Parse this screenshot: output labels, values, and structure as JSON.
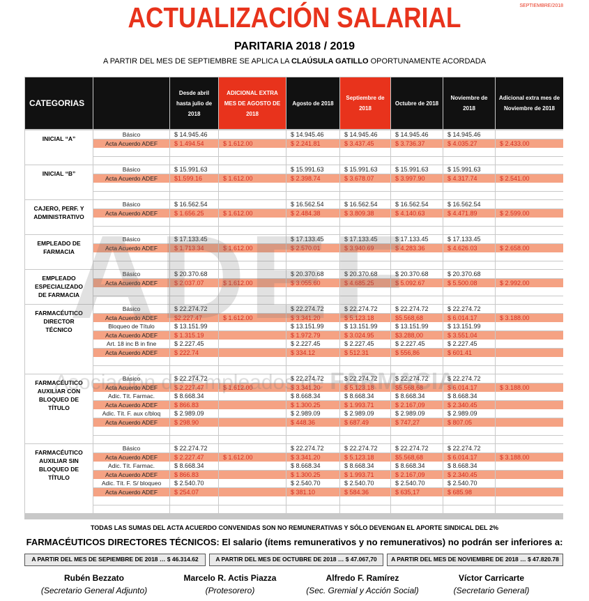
{
  "header": {
    "date": "SEPTIEMBRE/2018",
    "title": "ACTUALIZACIÓN SALARIAL",
    "subtitle": "PARITARIA 2018 / 2019",
    "intro_a": "A PARTIR DEL MES DE SEPTIEMBRE  SE APLICA LA",
    "intro_b": "CLAÚSULA GATILLO",
    "intro_c": "OPORTUNAMENTE ACORDADA"
  },
  "watermark": {
    "logo": "ADEF",
    "text_a": "Asociación de Empleados de",
    "text_b": "FARMACIA"
  },
  "table": {
    "headers": [
      "CATEGORIAS",
      null,
      "Desde abril hasta julio de 2018",
      "ADICIONAL EXTRA MES DE AGOSTO DE 2018",
      "Agosto de 2018",
      "Septiembre de 2018",
      "Octubre de 2018",
      "Noviembre de 2018",
      "Adicional extra mes de Noviembre de 2018"
    ],
    "groups": [
      {
        "category": "INICIAL “A”",
        "rows": [
          {
            "label": "Básico",
            "cells": [
              "$ 14.945.46",
              null,
              "$ 14.945.46",
              "$ 14.945.46",
              "$ 14.945.46",
              "$ 14.945.46",
              null
            ]
          },
          {
            "label": "Acta Acuerdo ADEF",
            "cells": [
              "$ 1.494.54",
              "$ 1.612.00",
              "$ 2.241.81",
              "$ 3.437.45",
              "$ 3.736.37",
              "$ 4.035.27",
              "$ 2.433.00"
            ]
          }
        ]
      },
      {
        "category": "INICIAL  “B”",
        "rows": [
          {
            "label": "Básico",
            "cells": [
              "$ 15.991.63",
              null,
              "$ 15.991.63",
              "$ 15.991.63",
              "$ 15.991.63",
              "$ 15.991.63",
              null
            ]
          },
          {
            "label": "Acta Acuerdo ADEF",
            "cells": [
              "$1.599.16",
              "$ 1.612.00",
              "$ 2.398.74",
              "$ 3.678.07",
              "$ 3.997.90",
              "$ 4.317.74",
              "$ 2.541.00"
            ]
          }
        ]
      },
      {
        "category": "CAJERO, PERF. Y ADMINISTRATIVO",
        "rows": [
          {
            "label": "Básico",
            "cells": [
              "$ 16.562.54",
              null,
              "$ 16.562.54",
              "$ 16.562.54",
              "$ 16.562.54",
              "$ 16.562.54",
              null
            ]
          },
          {
            "label": "Acta Acuerdo ADEF",
            "cells": [
              "$ 1.656.25",
              "$ 1.612.00",
              "$ 2.484.38",
              "$ 3.809.38",
              "$ 4.140.63",
              "$ 4.471.89",
              "$ 2.599.00"
            ]
          }
        ]
      },
      {
        "category": "EMPLEADO DE FARMACIA",
        "rows": [
          {
            "label": "Básico",
            "cells": [
              "$ 17.133.45",
              null,
              "$ 17.133.45",
              "$ 17.133.45",
              "$ 17.133.45",
              "$ 17.133.45",
              null
            ]
          },
          {
            "label": "Acta Acuerdo ADEF",
            "cells": [
              "$ 1.713.34",
              "$ 1.612.00",
              "$ 2.570.01",
              "$ 3.940.69",
              "$ 4.283.36",
              "$ 4.626.03",
              "$ 2.658.00"
            ]
          }
        ]
      },
      {
        "category": "EMPLEADO ESPECIALIZADO DE FARMACIA",
        "rows": [
          {
            "label": "Básico",
            "cells": [
              "$ 20.370.68",
              null,
              "$ 20.370.68",
              "$ 20.370.68",
              "$ 20.370.68",
              "$ 20.370.68",
              null
            ]
          },
          {
            "label": "Acta Acuerdo  ADEF",
            "cells": [
              "$ 2.037.07",
              "$ 1.612.00",
              "$ 3.055.60",
              "$ 4.685.25",
              "$ 5.092.67",
              "$ 5.500.08",
              "$ 2.992.00"
            ]
          }
        ]
      },
      {
        "category": "FARMACÉUTICO DIRECTOR TÉCNICO",
        "rows": [
          {
            "label": "Básico",
            "cells": [
              "$ 22.274.72",
              null,
              "$ 22.274.72",
              "$ 22.274.72",
              "$ 22.274.72",
              "$ 22.274.72",
              null
            ]
          },
          {
            "label": "Acta Acuerdo  ADEF",
            "cells": [
              "$2.227.47",
              "$ 1.612.00",
              "$ 3.341.20",
              "$ 5.123.18",
              "$5.568,68",
              "$ 6.014.17",
              "$ 3.188.00"
            ]
          },
          {
            "label": "Bloqueo de Título",
            "cells": [
              "$ 13.151.99",
              null,
              "$ 13.151.99",
              "$ 13.151.99",
              "$ 13.151.99",
              "$ 13.151.99",
              null
            ]
          },
          {
            "label": "Acta Acuerdo ADEF",
            "cells": [
              "$ 1.315.19",
              null,
              "$ 1.972.79",
              "$ 3.024.95",
              "$3.288,00",
              "$ 3.551.04",
              null
            ]
          },
          {
            "label": "Art. 18 inc B in fine",
            "cells": [
              "$ 2.227.45",
              null,
              "$ 2.227.45",
              "$ 2.227.45",
              "$ 2.227.45",
              "$ 2.227.45",
              null
            ]
          },
          {
            "label": "Acta Acuerdo ADEF",
            "cells": [
              "$ 222.74",
              null,
              "$ 334.12",
              "$ 512.31",
              "$ 556,86",
              "$ 601.41",
              null
            ]
          }
        ]
      },
      {
        "category": "FARMACÉUTICO AUXILIAR CON BLOQUEO DE TÍTULO",
        "rows": [
          {
            "label": "Básico",
            "cells": [
              "$ 22.274.72",
              null,
              "$ 22.274.72",
              "$ 22.274.72",
              "$ 22.274.72",
              "$ 22.274.72",
              null
            ]
          },
          {
            "label": "Acta Acuerdo ADEF",
            "cells": [
              "$ 2.227.47",
              "$ 1.612.00",
              "$ 3.341.20",
              "$ 5.123.18",
              "$5.568,68",
              "$ 6.014.17",
              "$ 3.188.00"
            ]
          },
          {
            "label": "Adic. Tít. Farmac.",
            "cells": [
              "$ 8.668.34",
              null,
              "$ 8.668.34",
              "$ 8.668.34",
              "$ 8.668.34",
              "$ 8.668.34",
              null
            ]
          },
          {
            "label": "Acta Acuerdo ADEF",
            "cells": [
              "$ 866.83",
              null,
              "$ 1.300.25",
              "$ 1.993.71",
              "$ 2.167,09",
              "$ 2.340.45",
              null
            ]
          },
          {
            "label": "Adic. Tít. F. aux c/bloq",
            "cells": [
              "$ 2.989.09",
              null,
              "$ 2.989.09",
              "$ 2.989.09",
              "$ 2.989.09",
              "$ 2.989.09",
              null
            ]
          },
          {
            "label": "Acta Acuerdo ADEF",
            "cells": [
              "$ 298.90",
              null,
              "$ 448.36",
              "$ 687.49",
              "$ 747,27",
              "$ 807.05",
              null
            ]
          }
        ]
      },
      {
        "category": "FARMACÉUTICO AUXILIAR SIN BLOQUEO DE TÍTULO",
        "rows": [
          {
            "label": "Básico",
            "cells": [
              "$ 22.274.72",
              null,
              "$ 22.274.72",
              "$ 22.274.72",
              "$ 22.274.72",
              "$ 22.274.72",
              null
            ]
          },
          {
            "label": "Acta Acuerdo ADEF",
            "cells": [
              "$ 2.227.47",
              "$ 1.612.00",
              "$ 3.341.20",
              "$ 5.123.18",
              "$5.568,68",
              "$ 6.014.17",
              "$ 3.188.00"
            ]
          },
          {
            "label": "Adic. Tít. Farmac.",
            "cells": [
              "$ 8.668.34",
              null,
              "$ 8.668.34",
              "$ 8.668.34",
              "$ 8.668.34",
              "$ 8.668.34",
              null
            ]
          },
          {
            "label": "Acta Acuerdo ADEF",
            "cells": [
              "$ 866.83",
              null,
              "$ 1.300.25",
              "$ 1.993.71",
              "$ 2.167,09",
              "$ 2.340.45",
              null
            ]
          },
          {
            "label": "Adic. Tít. F. S/ bloqueo",
            "cells": [
              "$ 2.540.70",
              null,
              "$ 2.540.70",
              "$ 2.540.70",
              "$ 2.540.70",
              "$ 2.540.70",
              null
            ]
          },
          {
            "label": "Acta Acuerdo ADEF",
            "cells": [
              "$ 254.07",
              null,
              "$ 381.10",
              "$ 584.36",
              "$ 635,17",
              "$ 685.98",
              null
            ]
          }
        ]
      }
    ]
  },
  "footer": {
    "note": "TODAS LAS SUMAS  DEL ACTA ACUERDO CONVENIDAS SON NO REMUNERATIVAS Y SÓLO DEVENGAN EL APORTE SINDICAL DEL 2%",
    "minimum": "FARMACÉUTICOS DIRECTORES TÉCNICOS: El salario (ítems remunerativos y no remunerativos) no podrán ser inferiores a:",
    "boxes": [
      "A PARTIR DEL MES DE SEPIEMBRE DE 2018 … $ 46.314.62",
      "A PARTIR DEL MES DE OCTUBRE DE 2018 … $ 47.067,70",
      "A PARTIR DEL MES DE NOVIEMBRE  DE 2018 … $ 47.820.78"
    ],
    "signatures": [
      {
        "name": "Rubén Bezzato",
        "role": "(Secretario General Adjunto)"
      },
      {
        "name": "Marcelo R. Actis Piazza",
        "role": "(Protesorero)"
      },
      {
        "name": "Alfredo F. Ramírez",
        "role": "(Sec. Gremial y Acción Social)"
      },
      {
        "name": "Víctor Carricarte",
        "role": "(Secretario General)"
      }
    ]
  }
}
